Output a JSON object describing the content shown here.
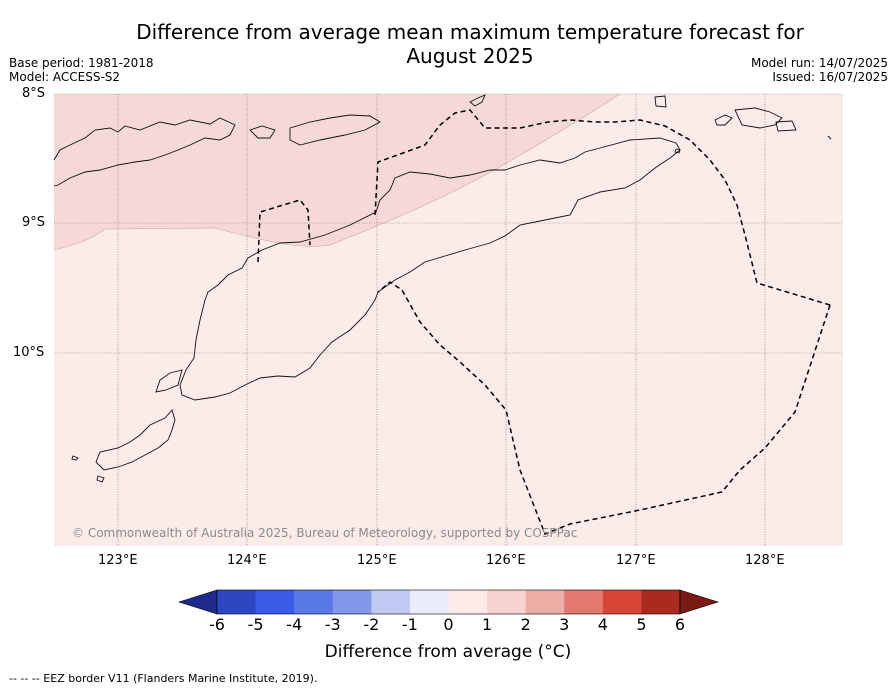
{
  "title_line1": "Difference from average mean maximum temperature forecast for",
  "title_line2": "August 2025",
  "meta_left": {
    "base_period": "Base period: 1981-2018",
    "model": "Model: ACCESS-S2"
  },
  "meta_right": {
    "model_run": "Model run: 14/07/2025",
    "issued": "Issued: 16/07/2025"
  },
  "lat_labels": [
    "8°S",
    "9°S",
    "10°S"
  ],
  "lon_labels": [
    "123°E",
    "124°E",
    "125°E",
    "126°E",
    "127°E",
    "128°E"
  ],
  "credit": "© Commonwealth of Australia 2025, Bureau of Meteorology, supported by COSPPac",
  "colorbar": {
    "title": "Difference from average (°C)",
    "ticks": [
      "-6",
      "-5",
      "-4",
      "-3",
      "-2",
      "-1",
      "0",
      "1",
      "2",
      "3",
      "4",
      "5",
      "6"
    ],
    "colors": [
      "#1f2a8a",
      "#2d47c2",
      "#3a5ce8",
      "#5b78e8",
      "#8397e8",
      "#bfc9f2",
      "#e9ecfb",
      "#fcebe9",
      "#f6d3d0",
      "#eeaca6",
      "#e3786f",
      "#d94537",
      "#a92a1f",
      "#7a1a14"
    ]
  },
  "map": {
    "anomaly_zones": [
      {
        "range": "1 to 2 °C",
        "color": "#f6d8d6"
      },
      {
        "range": "0 to 1 °C",
        "color": "#fbece9"
      }
    ]
  },
  "footnote": "-- -- -- EEZ border V11 (Flanders Marine Institute, 2019)."
}
